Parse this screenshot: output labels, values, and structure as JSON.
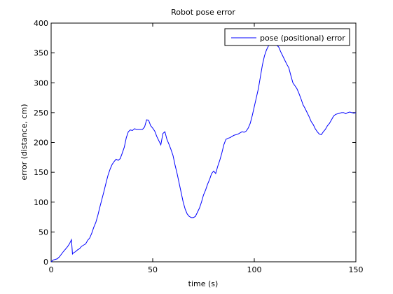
{
  "chart_data": {
    "type": "line",
    "title": "Robot pose error",
    "xlabel": "time (s)",
    "ylabel": "error (distance, cm)",
    "xlim": [
      0,
      150
    ],
    "ylim": [
      0,
      400
    ],
    "xticks": [
      0,
      50,
      100,
      150
    ],
    "yticks": [
      0,
      50,
      100,
      150,
      200,
      250,
      300,
      350,
      400
    ],
    "grid": false,
    "legend_position": "top-right",
    "series": [
      {
        "name": "pose (positional) error",
        "color": "#0000ff",
        "x": [
          0,
          1,
          3,
          4,
          6,
          8,
          9,
          10,
          10.5,
          11,
          12,
          13,
          14,
          15,
          16,
          17,
          18,
          19,
          20,
          21,
          22,
          23,
          24,
          25,
          26,
          27,
          28,
          29,
          30,
          31,
          32,
          33,
          34,
          35,
          36,
          37,
          38,
          39,
          40,
          41,
          42,
          43,
          44,
          45,
          46,
          47,
          48,
          49,
          50,
          51,
          52,
          53,
          54,
          55,
          56,
          57,
          58,
          59,
          60,
          61,
          62,
          63,
          64,
          65,
          66,
          67,
          68,
          69,
          70,
          71,
          72,
          73,
          74,
          75,
          76,
          77,
          78,
          79,
          80,
          81,
          82,
          83,
          84,
          85,
          86,
          87,
          88,
          89,
          90,
          91,
          92,
          93,
          94,
          95,
          96,
          97,
          98,
          99,
          100,
          101,
          102,
          103,
          104,
          105,
          106,
          107,
          108,
          109,
          110,
          111,
          112,
          113,
          114,
          115,
          116,
          117,
          118,
          119,
          120,
          121,
          122,
          123,
          124,
          125,
          126,
          127,
          128,
          129,
          130,
          131,
          132,
          133,
          134,
          135,
          136,
          137,
          138,
          139,
          140,
          141,
          142,
          143,
          144,
          145,
          146,
          147,
          148,
          149,
          150
        ],
        "y": [
          0,
          3,
          5,
          8,
          17,
          25,
          30,
          37,
          13,
          15,
          17,
          20,
          22,
          26,
          28,
          30,
          36,
          40,
          48,
          58,
          66,
          78,
          92,
          105,
          118,
          132,
          145,
          155,
          163,
          168,
          172,
          170,
          173,
          182,
          192,
          208,
          218,
          221,
          220,
          223,
          222,
          222,
          222,
          222,
          226,
          238,
          237,
          228,
          224,
          219,
          210,
          203,
          196,
          215,
          218,
          205,
          197,
          188,
          178,
          162,
          148,
          132,
          116,
          100,
          88,
          80,
          76,
          74,
          74,
          76,
          83,
          90,
          100,
          112,
          120,
          130,
          138,
          148,
          152,
          148,
          160,
          170,
          182,
          196,
          205,
          207,
          208,
          210,
          212,
          213,
          214,
          216,
          218,
          217,
          219,
          224,
          232,
          245,
          260,
          275,
          290,
          310,
          330,
          345,
          355,
          362,
          366,
          368,
          365,
          363,
          360,
          352,
          345,
          338,
          331,
          325,
          312,
          300,
          295,
          290,
          282,
          273,
          263,
          257,
          250,
          243,
          235,
          230,
          223,
          218,
          214,
          213,
          218,
          222,
          228,
          232,
          238,
          244,
          247,
          248,
          249,
          250,
          250,
          248,
          250,
          251,
          250,
          249,
          250
        ]
      }
    ]
  }
}
